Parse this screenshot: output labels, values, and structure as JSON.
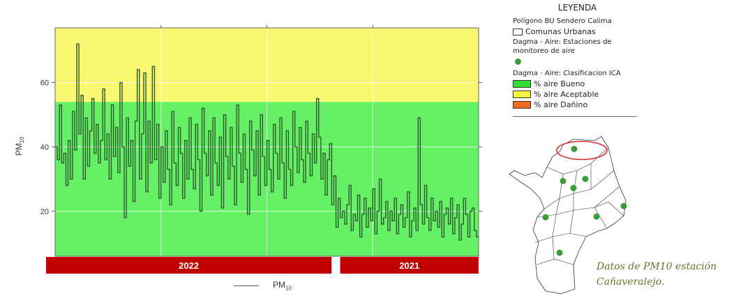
{
  "chart_data": {
    "type": "line",
    "ylabel": "PM10",
    "ylabel_main": "PM",
    "ylabel_sub": "10",
    "yticks": [
      20,
      40,
      60
    ],
    "ylim": [
      6,
      77
    ],
    "bands": [
      {
        "name": "% aire Bueno",
        "from": 6,
        "to": 54,
        "color": "#66f066"
      },
      {
        "name": "% aire Aceptable",
        "from": 54,
        "to": 77,
        "color": "#f8f870"
      }
    ],
    "period_bars": [
      {
        "label": "2022",
        "from": 0,
        "to": 0.66
      },
      {
        "label": "2021",
        "from": 0.68,
        "to": 1.0
      }
    ],
    "series": [
      {
        "name": "PM10",
        "name_main": "PM",
        "name_sub": "10",
        "color": "#2d5a2d",
        "values": [
          40,
          36,
          53,
          35,
          38,
          28,
          42,
          30,
          51,
          39,
          72,
          44,
          56,
          30,
          49,
          34,
          45,
          55,
          38,
          47,
          35,
          42,
          58,
          36,
          44,
          30,
          53,
          37,
          46,
          32,
          60,
          40,
          18,
          49,
          34,
          42,
          23,
          48,
          64,
          30,
          44,
          63,
          26,
          48,
          35,
          65,
          36,
          47,
          24,
          40,
          29,
          45,
          33,
          22,
          51,
          35,
          28,
          46,
          38,
          24,
          42,
          30,
          49,
          33,
          27,
          47,
          36,
          20,
          52,
          38,
          31,
          45,
          25,
          49,
          35,
          28,
          43,
          21,
          50,
          37,
          30,
          46,
          34,
          22,
          53,
          38,
          29,
          44,
          33,
          19,
          48,
          39,
          31,
          45,
          25,
          50,
          37,
          28,
          42,
          33,
          26,
          47,
          38,
          30,
          49,
          35,
          24,
          45,
          33,
          28,
          51,
          40,
          32,
          46,
          36,
          29,
          48,
          38,
          31,
          44,
          35,
          55,
          43,
          30,
          38,
          25,
          36,
          41,
          22,
          31,
          15,
          24,
          18,
          20,
          16,
          22,
          28,
          14,
          19,
          17,
          25,
          12,
          19,
          24,
          15,
          21,
          17,
          27,
          13,
          20,
          30,
          16,
          18,
          23,
          14,
          20,
          17,
          24,
          13,
          19,
          22,
          15,
          18,
          26,
          12,
          17,
          21,
          14,
          49,
          22,
          16,
          28,
          18,
          14,
          24,
          17,
          20,
          15,
          23,
          12,
          19,
          21,
          16,
          24,
          13,
          18,
          22,
          11,
          16,
          24,
          19,
          12,
          20,
          21,
          14,
          12
        ]
      }
    ]
  },
  "legend": {
    "title": "LEYENDA",
    "layer1": "Polígono BU Sendero Calima",
    "comunas": "Comunas Urbanas",
    "layer2_line1": "Dagma - Aire: Estaciones de",
    "layer2_line2": "monitoreo de aire",
    "layer3": "Dagma - Aire: Clasificacion ICA",
    "items": [
      {
        "label": "% aire Bueno",
        "color": "#33dd33"
      },
      {
        "label": "% aire Aceptable",
        "color": "#f5f540"
      },
      {
        "label": "% aire Dañino",
        "color": "#f26a21"
      }
    ]
  },
  "caption": {
    "line1": "Datos de PM10 estación",
    "line2": "Cañaveralejo."
  },
  "colors": {
    "period_bar": "#c00000",
    "station": "#3a9b3a",
    "highlight": "#d93030"
  }
}
